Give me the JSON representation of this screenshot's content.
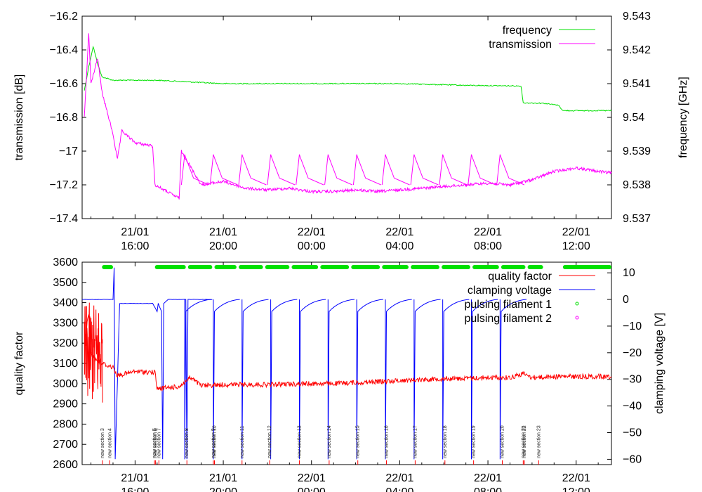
{
  "chart_data": [
    {
      "type": "line",
      "ylabel": "transmission [dB]",
      "y2label": "frequency [GHz]",
      "ylim": [
        -17.4,
        -16.2
      ],
      "y2lim": [
        9.537,
        9.543
      ],
      "yticks": [
        "−16.2",
        "−16.4",
        "−16.6",
        "−16.8",
        "−17",
        "−17.2",
        "−17.4"
      ],
      "y2ticks": [
        "9.543",
        "9.542",
        "9.541",
        "9.54",
        "9.539",
        "9.538",
        "9.537"
      ],
      "xlim_hours": [
        13.6,
        37.6
      ],
      "xticks": [
        {
          "day": "21/01",
          "time": "16:00"
        },
        {
          "day": "21/01",
          "time": "20:00"
        },
        {
          "day": "22/01",
          "time": "00:00"
        },
        {
          "day": "22/01",
          "time": "04:00"
        },
        {
          "day": "22/01",
          "time": "08:00"
        },
        {
          "day": "22/01",
          "time": "12:00"
        }
      ],
      "legend": "top-right",
      "series": [
        {
          "name": "frequency",
          "axis": "right",
          "color": "#00e000",
          "x": [
            13.7,
            13.9,
            14.0,
            14.1,
            14.3,
            14.5,
            15.0,
            17.0,
            20.0,
            24.0,
            28.0,
            31.0,
            33.5,
            33.6,
            34.5,
            35.2,
            35.4,
            37.6
          ],
          "y": [
            9.5408,
            9.5415,
            9.5418,
            9.5421,
            9.5416,
            9.5412,
            9.5411,
            9.5411,
            9.541,
            9.541,
            9.541,
            9.54095,
            9.54093,
            9.54043,
            9.54042,
            9.54036,
            9.5402,
            9.5402
          ]
        },
        {
          "name": "transmission",
          "axis": "left",
          "color": "#ff00ff",
          "x": [
            13.7,
            13.9,
            14.0,
            14.3,
            14.5,
            15.0,
            15.2,
            15.4,
            16.0,
            16.8,
            16.9,
            18.0,
            18.1,
            19.0,
            20.0,
            21.0,
            22.0,
            23.0,
            24.0,
            25.0,
            26.0,
            27.0,
            28.0,
            29.0,
            30.0,
            31.0,
            32.0,
            33.0,
            34.0,
            35.0,
            36.0,
            37.0,
            37.6
          ],
          "y": [
            -16.8,
            -16.3,
            -16.6,
            -16.45,
            -16.65,
            -16.9,
            -17.05,
            -16.88,
            -16.95,
            -16.97,
            -17.2,
            -17.28,
            -17.0,
            -17.2,
            -17.18,
            -17.22,
            -17.23,
            -17.22,
            -17.24,
            -17.24,
            -17.23,
            -17.24,
            -17.23,
            -17.22,
            -17.21,
            -17.2,
            -17.19,
            -17.2,
            -17.17,
            -17.12,
            -17.1,
            -17.12,
            -17.13
          ]
        }
      ]
    },
    {
      "type": "line",
      "ylabel": "quality factor",
      "y2label": "clamping voltage [V]",
      "ylim": [
        2600,
        3600
      ],
      "y2lim": [
        -62,
        14
      ],
      "yticks": [
        "3600",
        "3500",
        "3400",
        "3300",
        "3200",
        "3100",
        "3000",
        "2900",
        "2800",
        "2700",
        "2600"
      ],
      "y2ticks": [
        "10",
        "0",
        "−10",
        "−20",
        "−30",
        "−40",
        "−50",
        "−60"
      ],
      "xlim_hours": [
        13.6,
        37.6
      ],
      "xticks": [
        {
          "day": "21/01",
          "time": "16:00"
        },
        {
          "day": "21/01",
          "time": "20:00"
        },
        {
          "day": "22/01",
          "time": "00:00"
        },
        {
          "day": "22/01",
          "time": "04:00"
        },
        {
          "day": "22/01",
          "time": "08:00"
        },
        {
          "day": "22/01",
          "time": "12:00"
        }
      ],
      "legend": "top-right",
      "series": [
        {
          "name": "quality factor",
          "axis": "left",
          "color": "#ff0000",
          "x": [
            13.7,
            13.9,
            14.0,
            14.3,
            14.5,
            15.0,
            15.2,
            16.0,
            16.9,
            17.0,
            18.0,
            18.5,
            19.0,
            20.0,
            21.0,
            22.0,
            23.0,
            24.0,
            25.0,
            26.0,
            27.0,
            28.0,
            29.0,
            30.0,
            31.0,
            32.0,
            33.0,
            33.6,
            34.0,
            35.0,
            36.0,
            37.6
          ],
          "y": [
            3200,
            3350,
            3150,
            3110,
            3100,
            3080,
            3040,
            3060,
            3055,
            2975,
            2985,
            3030,
            2990,
            2995,
            2995,
            2995,
            2998,
            3000,
            3000,
            3005,
            3010,
            3015,
            3020,
            3025,
            3025,
            3030,
            3030,
            3050,
            3030,
            3035,
            3035,
            3035
          ]
        },
        {
          "name": "clamping voltage",
          "axis": "right",
          "color": "#0000ff",
          "x": [
            13.6,
            14.3,
            14.35,
            15.0,
            15.05,
            15.1,
            15.3,
            16.8,
            17.0,
            17.05,
            17.2,
            17.25,
            17.3,
            17.5,
            18.3,
            18.35,
            18.4,
            19.5
          ],
          "y": [
            0,
            0,
            0,
            0,
            12,
            -60,
            -1.5,
            -1.5,
            -4.5,
            -1.5,
            -4.5,
            -60,
            -1.5,
            0,
            0,
            -60,
            0,
            0
          ]
        },
        {
          "name": "pulsing filament 1",
          "axis": "band",
          "color": "#00e000",
          "intervals": [
            [
              14.5,
              15.0
            ],
            [
              16.9,
              18.3
            ],
            [
              18.4,
              19.5
            ],
            [
              19.6,
              20.6
            ],
            [
              20.7,
              21.8
            ],
            [
              21.9,
              23.0
            ],
            [
              23.1,
              24.3
            ],
            [
              24.4,
              25.7
            ],
            [
              25.8,
              27.1
            ],
            [
              27.2,
              28.4
            ],
            [
              28.5,
              29.8
            ],
            [
              29.9,
              31.2
            ],
            [
              31.3,
              32.5
            ],
            [
              32.6,
              33.7
            ],
            [
              33.8,
              34.5
            ],
            [
              35.4,
              37.6
            ]
          ]
        },
        {
          "name": "pulsing filament 2",
          "axis": "band",
          "color": "#ff00ff",
          "intervals": []
        }
      ],
      "sections": [
        {
          "label": "new section 3",
          "x": 14.52
        },
        {
          "label": "new section 4",
          "x": 14.85
        },
        {
          "label": "new section 5",
          "x": 16.88
        },
        {
          "label": "new section 6",
          "x": 16.93
        },
        {
          "label": "new section 7",
          "x": 17.08
        },
        {
          "label": "new section 8",
          "x": 18.35
        },
        {
          "label": "new section 9",
          "x": 19.55
        },
        {
          "label": "new section 10",
          "x": 19.6
        },
        {
          "label": "new section 11",
          "x": 20.85
        },
        {
          "label": "new section 12",
          "x": 22.1
        },
        {
          "label": "new section 13",
          "x": 23.45
        },
        {
          "label": "new section 14",
          "x": 24.8
        },
        {
          "label": "new section 15",
          "x": 26.1
        },
        {
          "label": "new section 16",
          "x": 27.4
        },
        {
          "label": "new section 17",
          "x": 28.7
        },
        {
          "label": "new section 18",
          "x": 30.05
        },
        {
          "label": "new section 19",
          "x": 31.35
        },
        {
          "label": "new section 20",
          "x": 32.65
        },
        {
          "label": "new section 21",
          "x": 33.6
        },
        {
          "label": "new section 22",
          "x": 33.65
        },
        {
          "label": "new section 23",
          "x": 34.3
        }
      ]
    }
  ]
}
